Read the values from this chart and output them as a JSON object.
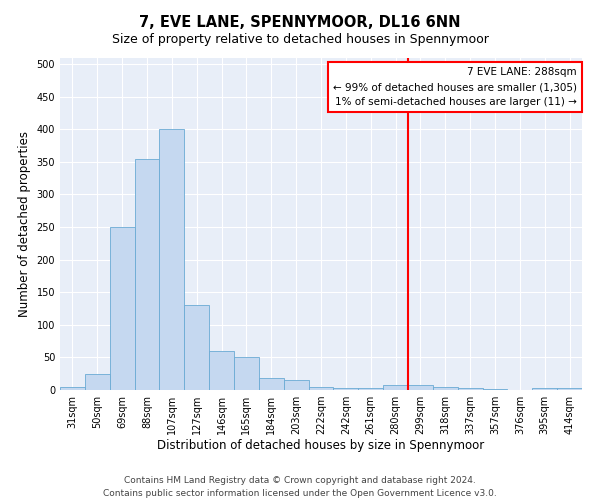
{
  "title": "7, EVE LANE, SPENNYMOOR, DL16 6NN",
  "subtitle": "Size of property relative to detached houses in Spennymoor",
  "xlabel": "Distribution of detached houses by size in Spennymoor",
  "ylabel": "Number of detached properties",
  "categories": [
    "31sqm",
    "50sqm",
    "69sqm",
    "88sqm",
    "107sqm",
    "127sqm",
    "146sqm",
    "165sqm",
    "184sqm",
    "203sqm",
    "222sqm",
    "242sqm",
    "261sqm",
    "280sqm",
    "299sqm",
    "318sqm",
    "337sqm",
    "357sqm",
    "376sqm",
    "395sqm",
    "414sqm"
  ],
  "values": [
    5,
    25,
    250,
    355,
    400,
    130,
    60,
    50,
    18,
    15,
    5,
    3,
    3,
    7,
    7,
    5,
    3,
    2,
    0,
    3,
    3
  ],
  "bar_color": "#c5d8f0",
  "bar_edge_color": "#6aaad4",
  "vline_color": "red",
  "vline_pos": 13.5,
  "ylim": [
    0,
    510
  ],
  "yticks": [
    0,
    50,
    100,
    150,
    200,
    250,
    300,
    350,
    400,
    450,
    500
  ],
  "annotation_title": "7 EVE LANE: 288sqm",
  "annotation_line1": "← 99% of detached houses are smaller (1,305)",
  "annotation_line2": "1% of semi-detached houses are larger (11) →",
  "annotation_box_color": "#ffffff",
  "annotation_box_edge": "red",
  "footer_line1": "Contains HM Land Registry data © Crown copyright and database right 2024.",
  "footer_line2": "Contains public sector information licensed under the Open Government Licence v3.0.",
  "background_color": "#e8eef8",
  "grid_color": "#ffffff",
  "fig_background": "#ffffff",
  "title_fontsize": 10.5,
  "axis_label_fontsize": 8.5,
  "tick_fontsize": 7,
  "annotation_fontsize": 7.5,
  "footer_fontsize": 6.5
}
